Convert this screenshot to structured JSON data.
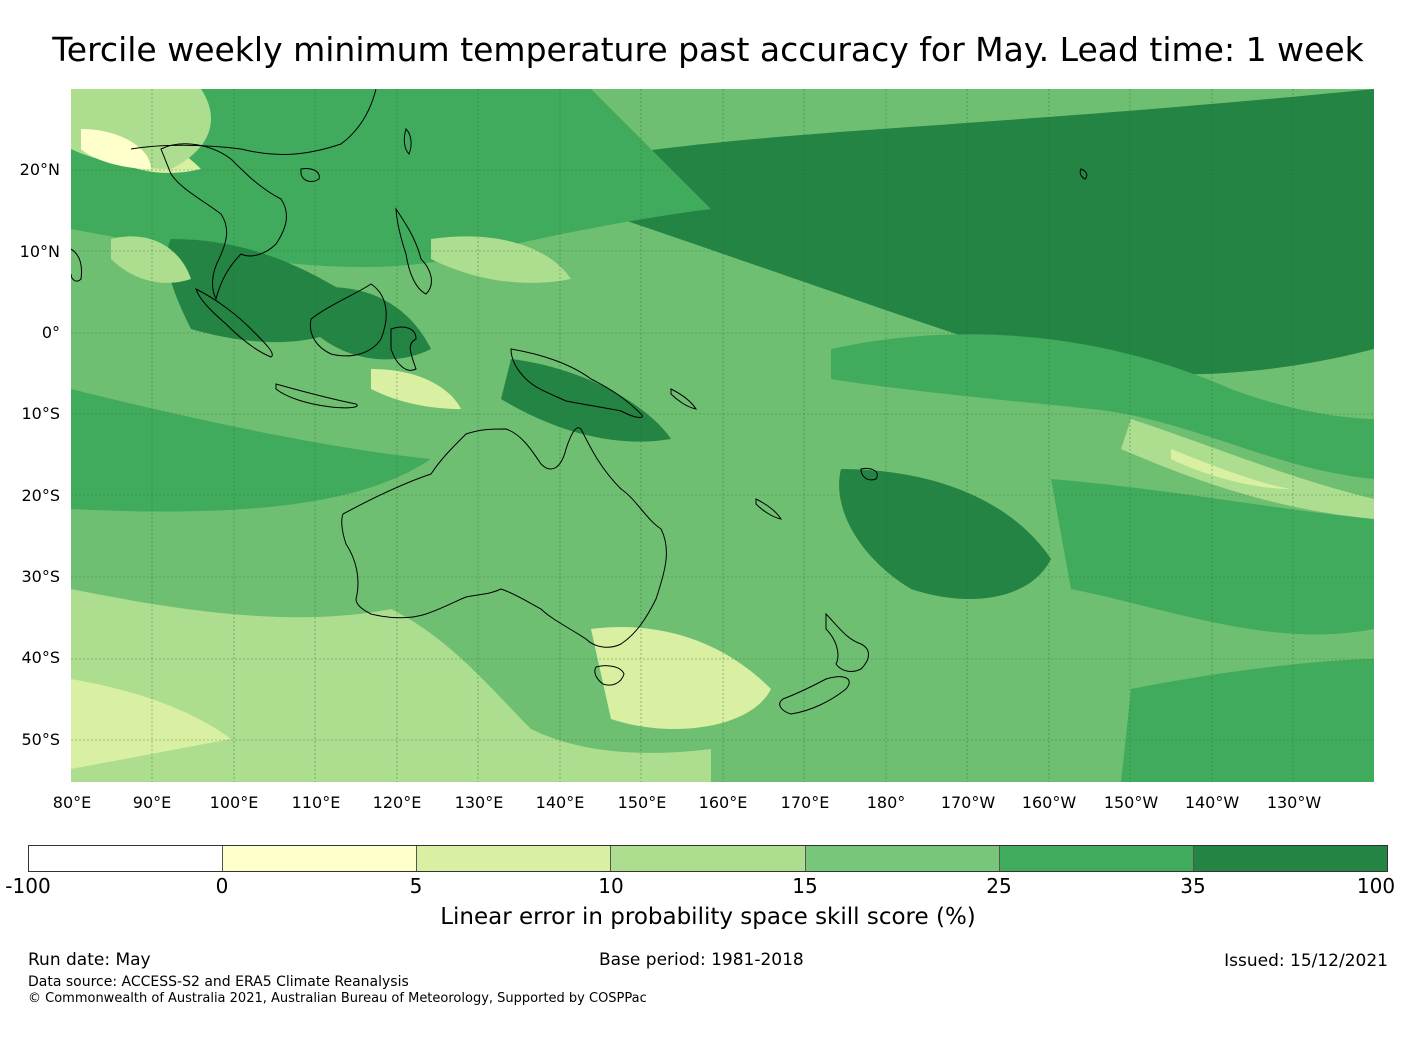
{
  "title": "Tercile weekly minimum temperature past accuracy for May. Lead time: 1 week",
  "map": {
    "lat_labels": [
      "20°N",
      "10°N",
      "0°",
      "10°S",
      "20°S",
      "30°S",
      "40°S",
      "50°S"
    ],
    "lon_labels": [
      "80°E",
      "90°E",
      "100°E",
      "110°E",
      "120°E",
      "130°E",
      "140°E",
      "150°E",
      "160°E",
      "170°E",
      "180°",
      "170°W",
      "160°W",
      "150°W",
      "140°W",
      "130°W"
    ],
    "region": "Indo-Pacific, Australia, New Zealand, Maritime Continent",
    "colors": {
      "land_outline": "#000000",
      "gridline": "#2a6a3a"
    }
  },
  "colorbar": {
    "ticks": [
      "-100",
      "0",
      "5",
      "10",
      "15",
      "25",
      "35",
      "100"
    ],
    "colors": [
      "#ffffff",
      "#ffffcc",
      "#d9f0a3",
      "#addd8e",
      "#78c679",
      "#41ab5d",
      "#238443"
    ],
    "label": "Linear error in probability space skill score (%)"
  },
  "footer": {
    "run_date": "Run date: May",
    "base_period": "Base period: 1981-2018",
    "issued": "Issued: 15/12/2021",
    "data_source": "Data source: ACCESS-S2 and ERA5 Climate Reanalysis",
    "copyright": "© Commonwealth of Australia 2021, Australian Bureau of Meteorology, Supported by COSPPac"
  }
}
